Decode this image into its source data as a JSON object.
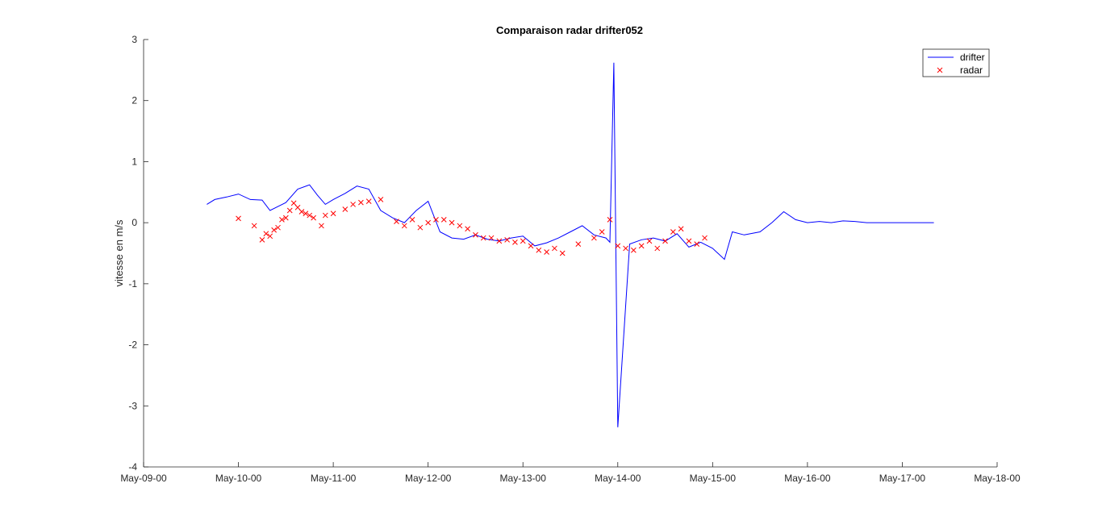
{
  "chart_data": {
    "type": "line",
    "title": "Comparaison radar drifter052",
    "xlabel": "",
    "ylabel": "vitesse en m/s",
    "x_axis": "date",
    "xlim": [
      "May-09-00",
      "May-18-00"
    ],
    "x_ticks": [
      "May-09-00",
      "May-10-00",
      "May-11-00",
      "May-12-00",
      "May-13-00",
      "May-14-00",
      "May-15-00",
      "May-16-00",
      "May-17-00",
      "May-18-00"
    ],
    "ylim": [
      -4,
      3
    ],
    "y_ticks": [
      "3",
      "2",
      "1",
      "0",
      "-1",
      "-2",
      "-3",
      "-4"
    ],
    "grid": false,
    "legend_position": "top-right",
    "colors": {
      "drifter": "#0000ff",
      "radar": "#ff0000"
    },
    "series": [
      {
        "name": "drifter",
        "style": "line",
        "x": [
          "May-09-16",
          "May-09-18",
          "May-09-21",
          "May-10-00",
          "May-10-03",
          "May-10-06",
          "May-10-08",
          "May-10-12",
          "May-10-15",
          "May-10-18",
          "May-10-20",
          "May-10-22",
          "May-11-00",
          "May-11-03",
          "May-11-06",
          "May-11-09",
          "May-11-12",
          "May-11-15",
          "May-11-18",
          "May-11-21",
          "May-12-00",
          "May-12-03",
          "May-12-06",
          "May-12-09",
          "May-12-12",
          "May-12-15",
          "May-12-18",
          "May-12-21",
          "May-13-00",
          "May-13-03",
          "May-13-06",
          "May-13-09",
          "May-13-12",
          "May-13-15",
          "May-13-18",
          "May-13-21",
          "May-13-22",
          "May-13-23",
          "May-14-00",
          "May-14-03",
          "May-14-06",
          "May-14-09",
          "May-14-12",
          "May-14-15",
          "May-14-18",
          "May-14-21",
          "May-15-00",
          "May-15-03",
          "May-15-05",
          "May-15-08",
          "May-15-12",
          "May-15-15",
          "May-15-18",
          "May-15-21",
          "May-16-00",
          "May-16-03",
          "May-16-06",
          "May-16-09",
          "May-16-12",
          "May-16-15",
          "May-16-18",
          "May-16-21",
          "May-17-00",
          "May-17-04",
          "May-17-08"
        ],
        "y": [
          0.3,
          0.38,
          0.42,
          0.47,
          0.38,
          0.37,
          0.2,
          0.33,
          0.55,
          0.62,
          0.45,
          0.3,
          0.38,
          0.48,
          0.6,
          0.55,
          0.2,
          0.08,
          0.0,
          0.2,
          0.35,
          -0.15,
          -0.25,
          -0.27,
          -0.2,
          -0.27,
          -0.3,
          -0.25,
          -0.22,
          -0.38,
          -0.33,
          -0.25,
          -0.15,
          -0.05,
          -0.2,
          -0.25,
          -0.32,
          2.62,
          -3.35,
          -0.35,
          -0.28,
          -0.25,
          -0.3,
          -0.18,
          -0.4,
          -0.32,
          -0.42,
          -0.6,
          -0.15,
          -0.2,
          -0.15,
          0.0,
          0.18,
          0.05,
          0.0,
          0.02,
          0.0,
          0.03,
          0.02,
          0.0,
          0.0,
          0.0,
          0.0,
          0.0,
          0.0
        ]
      },
      {
        "name": "radar",
        "style": "markers",
        "x": [
          "May-10-00",
          "May-10-04",
          "May-10-06",
          "May-10-07",
          "May-10-08",
          "May-10-09",
          "May-10-10",
          "May-10-11",
          "May-10-12",
          "May-10-13",
          "May-10-14",
          "May-10-15",
          "May-10-16",
          "May-10-17",
          "May-10-18",
          "May-10-19",
          "May-10-21",
          "May-10-22",
          "May-11-00",
          "May-11-03",
          "May-11-05",
          "May-11-07",
          "May-11-09",
          "May-11-12",
          "May-11-16",
          "May-11-18",
          "May-11-20",
          "May-11-22",
          "May-12-00",
          "May-12-02",
          "May-12-04",
          "May-12-06",
          "May-12-08",
          "May-12-10",
          "May-12-12",
          "May-12-14",
          "May-12-16",
          "May-12-18",
          "May-12-20",
          "May-12-22",
          "May-13-00",
          "May-13-02",
          "May-13-04",
          "May-13-06",
          "May-13-08",
          "May-13-10",
          "May-13-14",
          "May-13-18",
          "May-13-20",
          "May-13-22",
          "May-14-00",
          "May-14-02",
          "May-14-04",
          "May-14-06",
          "May-14-08",
          "May-14-10",
          "May-14-12",
          "May-14-14",
          "May-14-16",
          "May-14-18",
          "May-14-20",
          "May-14-22"
        ],
        "y": [
          0.07,
          -0.05,
          -0.28,
          -0.18,
          -0.22,
          -0.12,
          -0.08,
          0.05,
          0.08,
          0.2,
          0.32,
          0.25,
          0.18,
          0.15,
          0.12,
          0.08,
          -0.05,
          0.12,
          0.15,
          0.22,
          0.3,
          0.33,
          0.35,
          0.38,
          0.02,
          -0.05,
          0.05,
          -0.08,
          0.0,
          0.05,
          0.05,
          0.0,
          -0.05,
          -0.1,
          -0.2,
          -0.25,
          -0.25,
          -0.3,
          -0.28,
          -0.32,
          -0.3,
          -0.38,
          -0.45,
          -0.48,
          -0.42,
          -0.5,
          -0.35,
          -0.25,
          -0.15,
          0.05,
          -0.38,
          -0.42,
          -0.45,
          -0.38,
          -0.3,
          -0.42,
          -0.3,
          -0.15,
          -0.1,
          -0.3,
          -0.35,
          -0.25
        ]
      }
    ]
  }
}
